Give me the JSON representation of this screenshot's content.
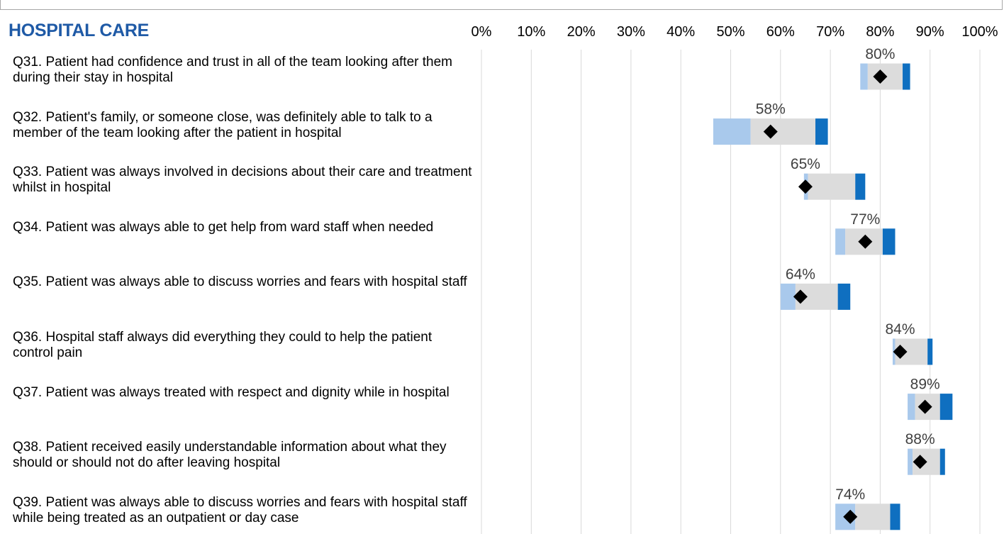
{
  "section_title": "HOSPITAL CARE",
  "chart_data": {
    "type": "bar",
    "subtype": "range-dot",
    "xlim": [
      0,
      100
    ],
    "tick_labels": [
      "0%",
      "10%",
      "20%",
      "30%",
      "40%",
      "50%",
      "60%",
      "70%",
      "80%",
      "90%",
      "100%"
    ],
    "grid": true,
    "colors": {
      "lower_band": "#a9c9ec",
      "middle_band": "#dcdcdc",
      "upper_band": "#0f6fc0",
      "marker": "#000000",
      "grid": "#d9d9d9"
    },
    "rows": [
      {
        "question": "Q31. Patient had confidence and trust in all of the team looking after them during their stay in hospital",
        "value": 80,
        "value_label": "80%",
        "low": 76,
        "mid_low": 77.5,
        "mid_high": 84.5,
        "high": 86
      },
      {
        "question": "Q32. Patient's family, or someone close, was definitely able to talk to a member of the team looking after the patient in hospital",
        "value": 58,
        "value_label": "58%",
        "low": 46.5,
        "mid_low": 54,
        "mid_high": 67,
        "high": 69.5
      },
      {
        "question": "Q33. Patient was always involved in decisions about their care and treatment whilst in hospital",
        "value": 65,
        "value_label": "65%",
        "low": 64.7,
        "mid_low": 65.5,
        "mid_high": 75,
        "high": 77
      },
      {
        "question": "Q34. Patient was always able to get help from ward staff when needed",
        "value": 77,
        "value_label": "77%",
        "low": 71,
        "mid_low": 73,
        "mid_high": 80.5,
        "high": 83
      },
      {
        "question": "Q35. Patient was always able to discuss worries and fears with hospital staff",
        "value": 64,
        "value_label": "64%",
        "low": 60,
        "mid_low": 63,
        "mid_high": 71.5,
        "high": 74
      },
      {
        "question": "Q36. Hospital staff always did everything they could to help the patient control pain",
        "value": 84,
        "value_label": "84%",
        "low": 82.5,
        "mid_low": 83,
        "mid_high": 89.5,
        "high": 90.5
      },
      {
        "question": "Q37. Patient was always treated with respect and dignity while in hospital",
        "value": 89,
        "value_label": "89%",
        "low": 85.5,
        "mid_low": 87,
        "mid_high": 92,
        "high": 94.5
      },
      {
        "question": "Q38. Patient received easily understandable information about what they should or should not do after leaving hospital",
        "value": 88,
        "value_label": "88%",
        "low": 85.5,
        "mid_low": 86.5,
        "mid_high": 92,
        "high": 93
      },
      {
        "question": "Q39. Patient was always able to discuss worries and fears with hospital staff while being treated as an outpatient or day case",
        "value": 74,
        "value_label": "74%",
        "low": 71,
        "mid_low": 75,
        "mid_high": 82,
        "high": 84
      }
    ]
  }
}
